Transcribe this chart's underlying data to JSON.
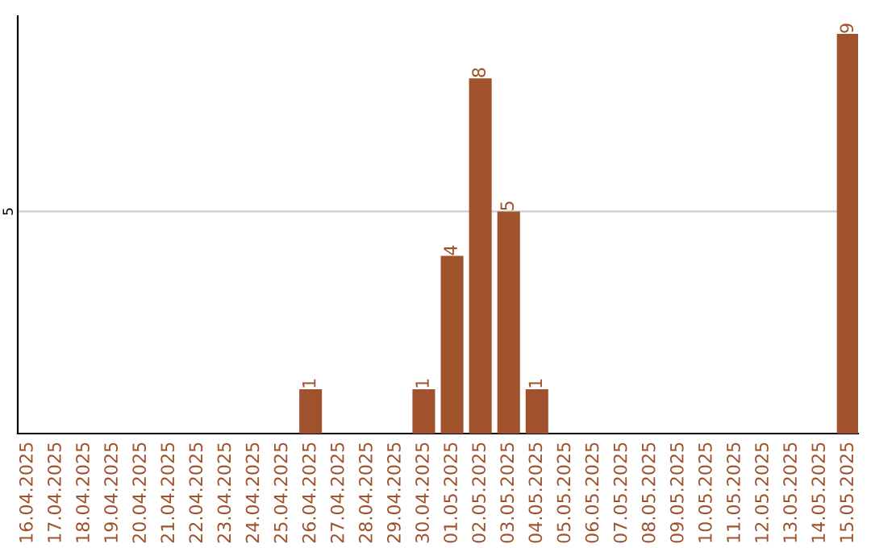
{
  "chart_data": {
    "type": "bar",
    "categories": [
      "16.04.2025",
      "17.04.2025",
      "18.04.2025",
      "19.04.2025",
      "20.04.2025",
      "21.04.2025",
      "22.04.2025",
      "23.04.2025",
      "24.04.2025",
      "25.04.2025",
      "26.04.2025",
      "27.04.2025",
      "28.04.2025",
      "29.04.2025",
      "30.04.2025",
      "01.05.2025",
      "02.05.2025",
      "03.05.2025",
      "04.05.2025",
      "05.05.2025",
      "06.05.2025",
      "07.05.2025",
      "08.05.2025",
      "09.05.2025",
      "10.05.2025",
      "11.05.2025",
      "12.05.2025",
      "13.05.2025",
      "14.05.2025",
      "15.05.2025"
    ],
    "values": [
      0,
      0,
      0,
      0,
      0,
      0,
      0,
      0,
      0,
      0,
      1,
      0,
      0,
      0,
      1,
      4,
      8,
      5,
      1,
      0,
      0,
      0,
      0,
      0,
      0,
      0,
      0,
      0,
      0,
      9
    ],
    "value_labels": [
      null,
      null,
      null,
      null,
      null,
      null,
      null,
      null,
      null,
      null,
      "1",
      null,
      null,
      null,
      "1",
      "4",
      "8",
      "5",
      "1",
      null,
      null,
      null,
      null,
      null,
      null,
      null,
      null,
      null,
      null,
      "9"
    ],
    "color": "#a0522d",
    "ylim": [
      0,
      9.4
    ],
    "yticks": [
      5
    ],
    "grid": "y",
    "legend": false
  }
}
